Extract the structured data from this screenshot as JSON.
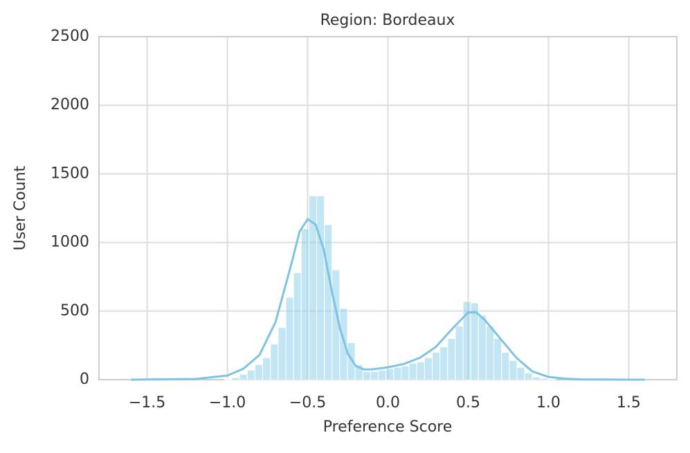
{
  "chart_data": {
    "type": "histogram",
    "title": "Region: Bordeaux",
    "x_label": "Preference Score",
    "y_label": "User Count",
    "color": "#87ceeb",
    "bins": [
      -1.02,
      -0.972,
      -0.924,
      -0.876,
      -0.828,
      -0.78,
      -0.732,
      -0.684,
      -0.636,
      -0.588,
      -0.54,
      -0.492,
      -0.444,
      -0.396,
      -0.348,
      -0.3,
      -0.252,
      -0.204,
      -0.156,
      -0.108,
      -0.06,
      -0.012,
      0.036,
      0.084,
      0.132,
      0.18,
      0.228,
      0.276,
      0.324,
      0.372,
      0.42,
      0.468,
      0.516,
      0.564,
      0.612,
      0.66,
      0.708,
      0.756,
      0.804,
      0.852,
      0.9,
      0.948,
      0.996,
      1.044
    ],
    "values": [
      5,
      15,
      40,
      70,
      110,
      160,
      260,
      380,
      600,
      780,
      1100,
      1340,
      1340,
      1130,
      800,
      520,
      270,
      110,
      60,
      60,
      70,
      80,
      90,
      100,
      120,
      130,
      160,
      200,
      240,
      300,
      390,
      570,
      560,
      470,
      390,
      300,
      200,
      140,
      90,
      50,
      20,
      10,
      5
    ],
    "kde": {
      "color": "#7ec4e0",
      "x": [
        -1.6,
        -1.2,
        -1.0,
        -0.9,
        -0.8,
        -0.7,
        -0.6,
        -0.55,
        -0.5,
        -0.45,
        -0.4,
        -0.35,
        -0.3,
        -0.25,
        -0.2,
        -0.15,
        -0.1,
        0.0,
        0.1,
        0.2,
        0.3,
        0.4,
        0.5,
        0.55,
        0.6,
        0.7,
        0.8,
        0.9,
        1.0,
        1.1,
        1.2,
        1.6
      ],
      "values": [
        0,
        5,
        30,
        80,
        180,
        420,
        850,
        1080,
        1170,
        1130,
        950,
        650,
        380,
        190,
        100,
        75,
        75,
        90,
        115,
        160,
        240,
        370,
        490,
        490,
        440,
        300,
        160,
        60,
        20,
        8,
        2,
        0
      ]
    },
    "xlim": [
      -1.8,
      1.8
    ],
    "ylim": [
      0,
      2500
    ],
    "xticks": [
      {
        "value": -1.5,
        "label": "−1.5"
      },
      {
        "value": -1.0,
        "label": "−1.0"
      },
      {
        "value": -0.5,
        "label": "−0.5"
      },
      {
        "value": 0,
        "label": "0.0"
      },
      {
        "value": 0.5,
        "label": "0.5"
      },
      {
        "value": 1.0,
        "label": "1.0"
      },
      {
        "value": 1.5,
        "label": "1.5"
      }
    ],
    "yticks": [
      0,
      500,
      1000,
      1500,
      2000,
      2500
    ],
    "grid": true
  }
}
